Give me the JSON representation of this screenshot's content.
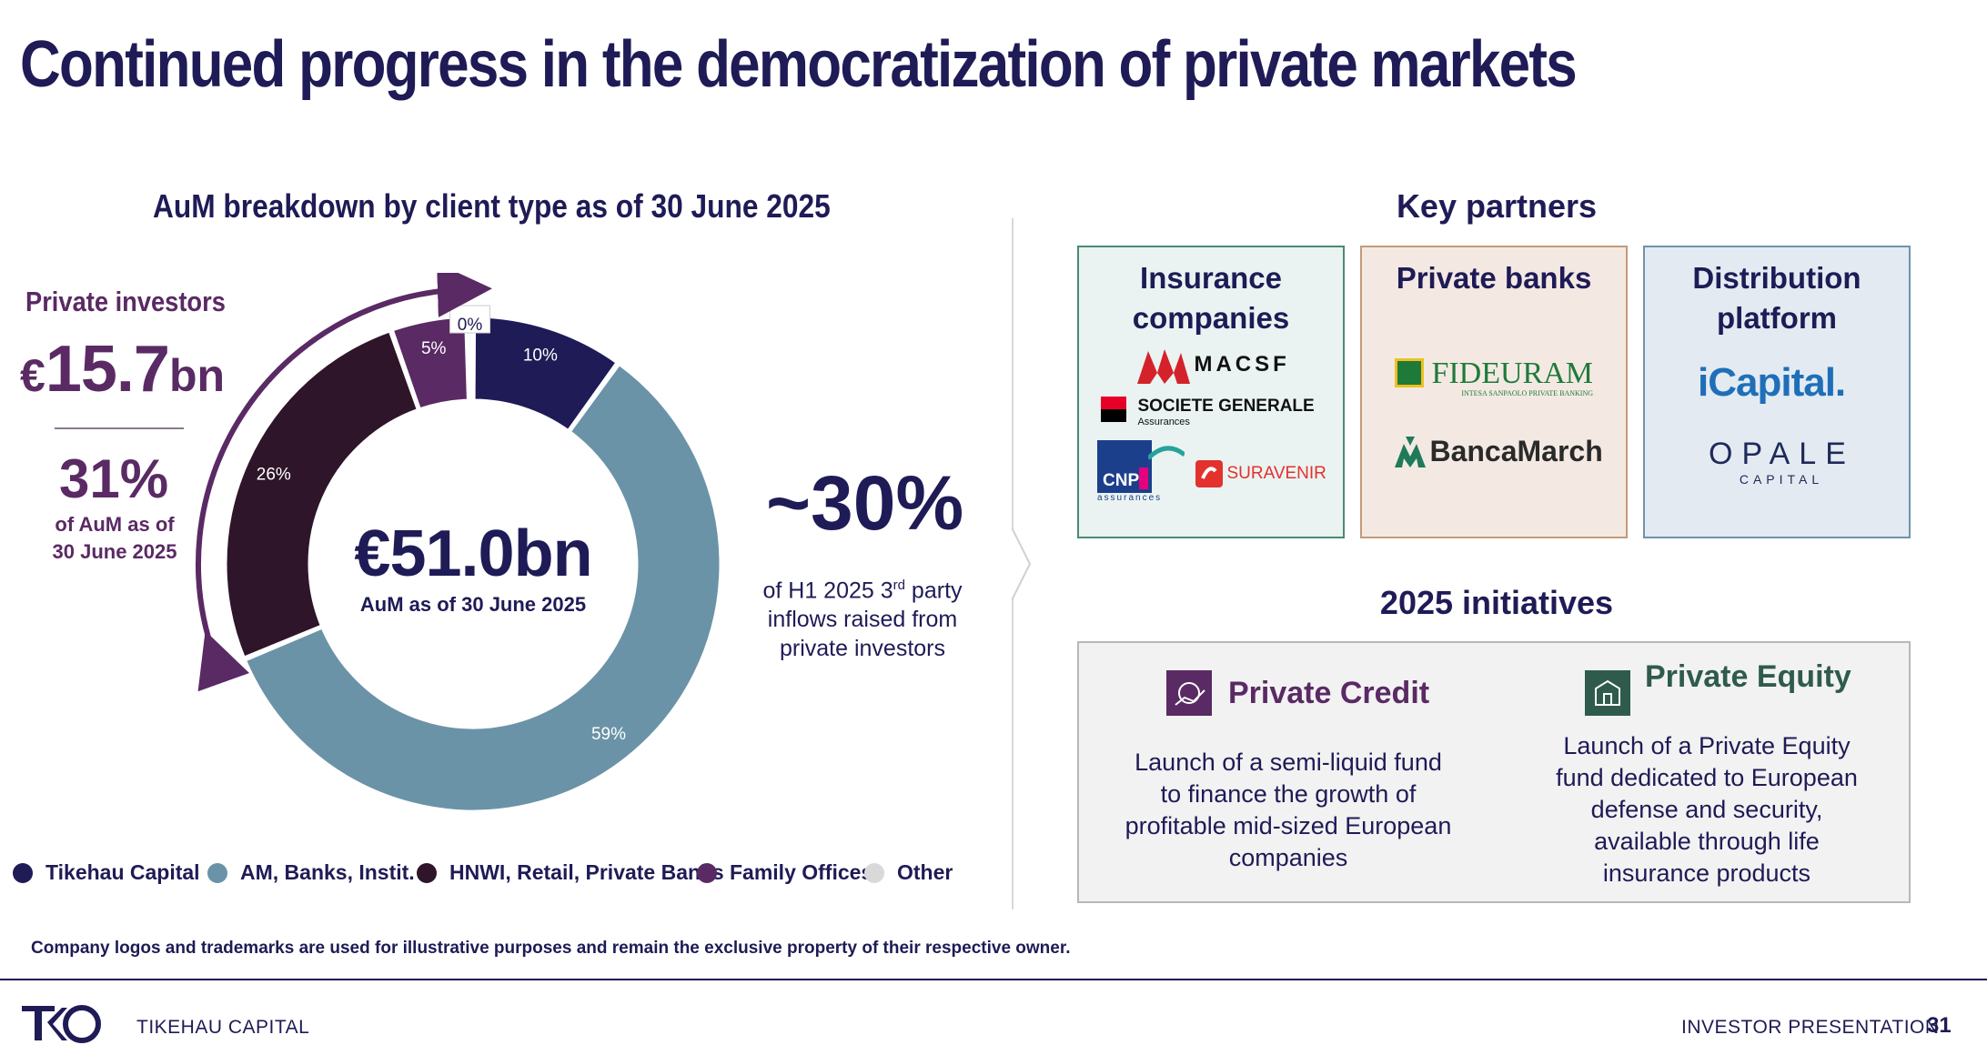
{
  "slide": {
    "title": "Continued progress in the democratization of private markets",
    "disclaimer": "Company logos and trademarks are used for illustrative purposes and remain the exclusive property of their respective owner."
  },
  "chart_data": {
    "type": "pie",
    "title": "AuM breakdown by client type as of 30 June 2025",
    "center_value": "€51.0bn",
    "center_label": "AuM as of 30 June 2025",
    "series": [
      {
        "name": "Tikehau Capital",
        "value": 10,
        "label": "10%",
        "color": "#1e1b56"
      },
      {
        "name": "AM, Banks, Instit.",
        "value": 59,
        "label": "59%",
        "color": "#6b93a7"
      },
      {
        "name": "HNWI, Retail, Private Banks",
        "value": 26,
        "label": "26%",
        "color": "#2e1529"
      },
      {
        "name": "Family Offices",
        "value": 5,
        "label": "5%",
        "color": "#5a2a64"
      },
      {
        "name": "Other",
        "value": 0.4,
        "label": "0%",
        "color": "#d9d9d9"
      }
    ],
    "legend_position": "bottom"
  },
  "private_investors": {
    "label": "Private investors",
    "currency": "€",
    "amount": "15.7",
    "unit": "bn",
    "share": "31%",
    "share_desc_line1": "of AuM as of",
    "share_desc_line2": "30 June 2025"
  },
  "inflows": {
    "value": "~30%",
    "desc_pre": "of H1 2025 3",
    "desc_sup": "rd",
    "desc_post": " party",
    "desc_line2": "inflows raised from",
    "desc_line3": "private investors"
  },
  "partners": {
    "title": "Key partners",
    "boxes": [
      {
        "title_line1": "Insurance",
        "title_line2": "companies",
        "logos": [
          "MACSF",
          "SOCIETE GENERALE",
          "Assurances",
          "CNP",
          "assurances",
          "SURAVENIR"
        ]
      },
      {
        "title_line1": "Private banks",
        "logos": [
          "FIDEURAM",
          "INTESA SANPAOLO PRIVATE BANKING",
          "BancaMarch"
        ]
      },
      {
        "title_line1": "Distribution",
        "title_line2": "platform",
        "logos": [
          "iCapital.",
          "OPALE",
          "CAPITAL"
        ]
      }
    ]
  },
  "initiatives": {
    "title": "2025 initiatives",
    "items": [
      {
        "heading": "Private Credit",
        "color": "#5a2a64",
        "text": [
          "Launch of a semi-liquid fund",
          "to finance the growth of",
          "profitable mid-sized European",
          "companies"
        ]
      },
      {
        "heading": "Private Equity",
        "color": "#2f5b4c",
        "text": [
          "Launch of a Private Equity",
          "fund dedicated to European",
          "defense and security,",
          "available through life",
          "insurance products"
        ]
      }
    ]
  },
  "footer": {
    "company": "TIKEHAU CAPITAL",
    "doc": "INVESTOR PRESENTATION",
    "page": "31"
  }
}
